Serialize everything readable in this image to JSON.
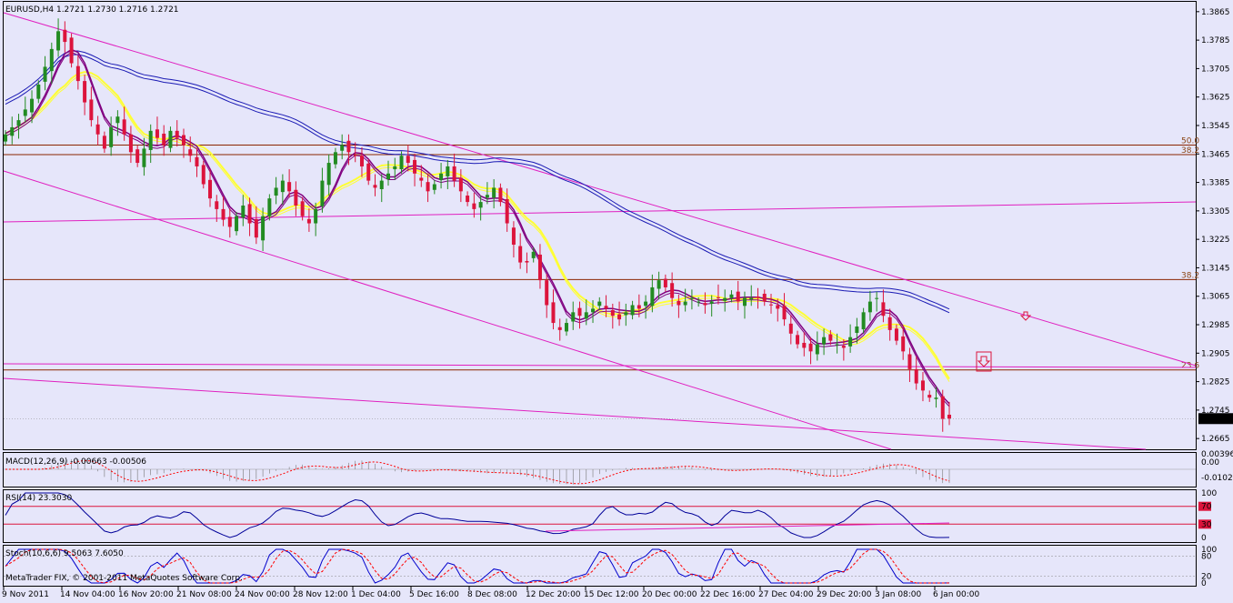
{
  "header": {
    "symbol_info": "EURUSD,H4  1.2721 1.2730 1.2716 1.2721",
    "copyright": "MetaTrader FIX, © 2001-2011 MetaQuotes Software Corp."
  },
  "colors": {
    "background": "#e6e6fa",
    "bull": "#228b22",
    "bear": "#dc143c",
    "sma_fast": "#800080",
    "sma_mid": "#ffff33",
    "sma_slow": "#1a1ab4",
    "channel": "#e020c0",
    "fib": "#8b2500",
    "rsi_line": "#000099",
    "stoch_main": "#0000cc",
    "stoch_signal": "#ff0000",
    "macd": "#ff0000",
    "current_price_bg": "#000000"
  },
  "icons": [
    "sell-arrow-icon",
    "sell-arrow-boxed-icon"
  ],
  "chart_data": [
    {
      "type": "candlestick",
      "name": "EURUSD,H4",
      "last_price": "1.2721",
      "ylim": [
        1.2645,
        1.3885
      ],
      "y_ticks": [
        "1.3865",
        "1.3785",
        "1.3705",
        "1.3625",
        "1.3545",
        "1.3465",
        "1.3385",
        "1.3305",
        "1.3225",
        "1.3145",
        "1.3065",
        "1.2985",
        "1.2905",
        "1.2825",
        "1.2745",
        "1.2665"
      ],
      "x_ticks": [
        "9 Nov 2011",
        "14 Nov 04:00",
        "16 Nov 20:00",
        "21 Nov 08:00",
        "24 Nov 00:00",
        "28 Nov 12:00",
        "1 Dec 04:00",
        "5 Dec 16:00",
        "8 Dec 08:00",
        "12 Dec 20:00",
        "15 Dec 12:00",
        "20 Dec 00:00",
        "22 Dec 16:00",
        "27 Dec 04:00",
        "29 Dec 20:00",
        "3 Jan 08:00",
        "6 Jan 00:00"
      ],
      "close_series": [
        1.352,
        1.354,
        1.356,
        1.359,
        1.362,
        1.366,
        1.371,
        1.376,
        1.381,
        1.378,
        1.372,
        1.367,
        1.361,
        1.356,
        1.352,
        1.348,
        1.354,
        1.357,
        1.352,
        1.347,
        1.344,
        1.348,
        1.353,
        1.351,
        1.349,
        1.353,
        1.351,
        1.349,
        1.346,
        1.343,
        1.338,
        1.334,
        1.331,
        1.328,
        1.326,
        1.329,
        1.332,
        1.327,
        1.323,
        1.329,
        1.334,
        1.337,
        1.339,
        1.336,
        1.332,
        1.329,
        1.327,
        1.331,
        1.339,
        1.344,
        1.347,
        1.349,
        1.347,
        1.346,
        1.343,
        1.339,
        1.337,
        1.339,
        1.341,
        1.343,
        1.346,
        1.344,
        1.341,
        1.339,
        1.336,
        1.338,
        1.341,
        1.343,
        1.339,
        1.336,
        1.333,
        1.331,
        1.333,
        1.335,
        1.337,
        1.333,
        1.327,
        1.321,
        1.316,
        1.316,
        1.319,
        1.311,
        1.304,
        1.299,
        1.297,
        1.299,
        1.302,
        1.301,
        1.302,
        1.303,
        1.305,
        1.303,
        1.301,
        1.3,
        1.302,
        1.304,
        1.303,
        1.305,
        1.309,
        1.311,
        1.309,
        1.306,
        1.304,
        1.305,
        1.306,
        1.305,
        1.304,
        1.305,
        1.306,
        1.306,
        1.307,
        1.305,
        1.306,
        1.306,
        1.306,
        1.305,
        1.304,
        1.303,
        1.3,
        1.296,
        1.293,
        1.292,
        1.291,
        1.293,
        1.295,
        1.294,
        1.293,
        1.292,
        1.295,
        1.298,
        1.302,
        1.305,
        1.306,
        1.301,
        1.297,
        1.294,
        1.291,
        1.286,
        1.282,
        1.28,
        1.278,
        1.278,
        1.272,
        1.2721
      ],
      "series": [
        {
          "name": "SMA fast",
          "color": "#800080"
        },
        {
          "name": "SMA mid",
          "color": "#ffff33"
        },
        {
          "name": "SMA slow",
          "color": "#1a1ab4"
        }
      ],
      "fib_levels": [
        {
          "label": "50.0",
          "price": 1.349
        },
        {
          "label": "38.2",
          "price": 1.3463
        },
        {
          "label": "38.2",
          "price": 1.3112
        },
        {
          "label": "23.6",
          "price": 1.2858
        }
      ]
    },
    {
      "type": "line",
      "name": "MACD(12,26,9)",
      "label": "MACD(12,26,9) -0.00663 -0.00506",
      "y_ticks": [
        "0.00396",
        "0.00",
        "-0.01022"
      ]
    },
    {
      "type": "line",
      "name": "RSI(14)",
      "label": "RSI(14) 23.3030",
      "ylim": [
        0,
        100
      ],
      "levels": [
        70,
        30
      ],
      "y_ticks": [
        "100",
        "70",
        "30",
        "0"
      ]
    },
    {
      "type": "line",
      "name": "Stoch(10,6,6)",
      "label": "Stoch(10,6,6) 9.5063 7.6050",
      "ylim": [
        0,
        100
      ],
      "levels": [
        80,
        20
      ],
      "y_ticks": [
        "100",
        "80",
        "20",
        "0"
      ]
    }
  ]
}
